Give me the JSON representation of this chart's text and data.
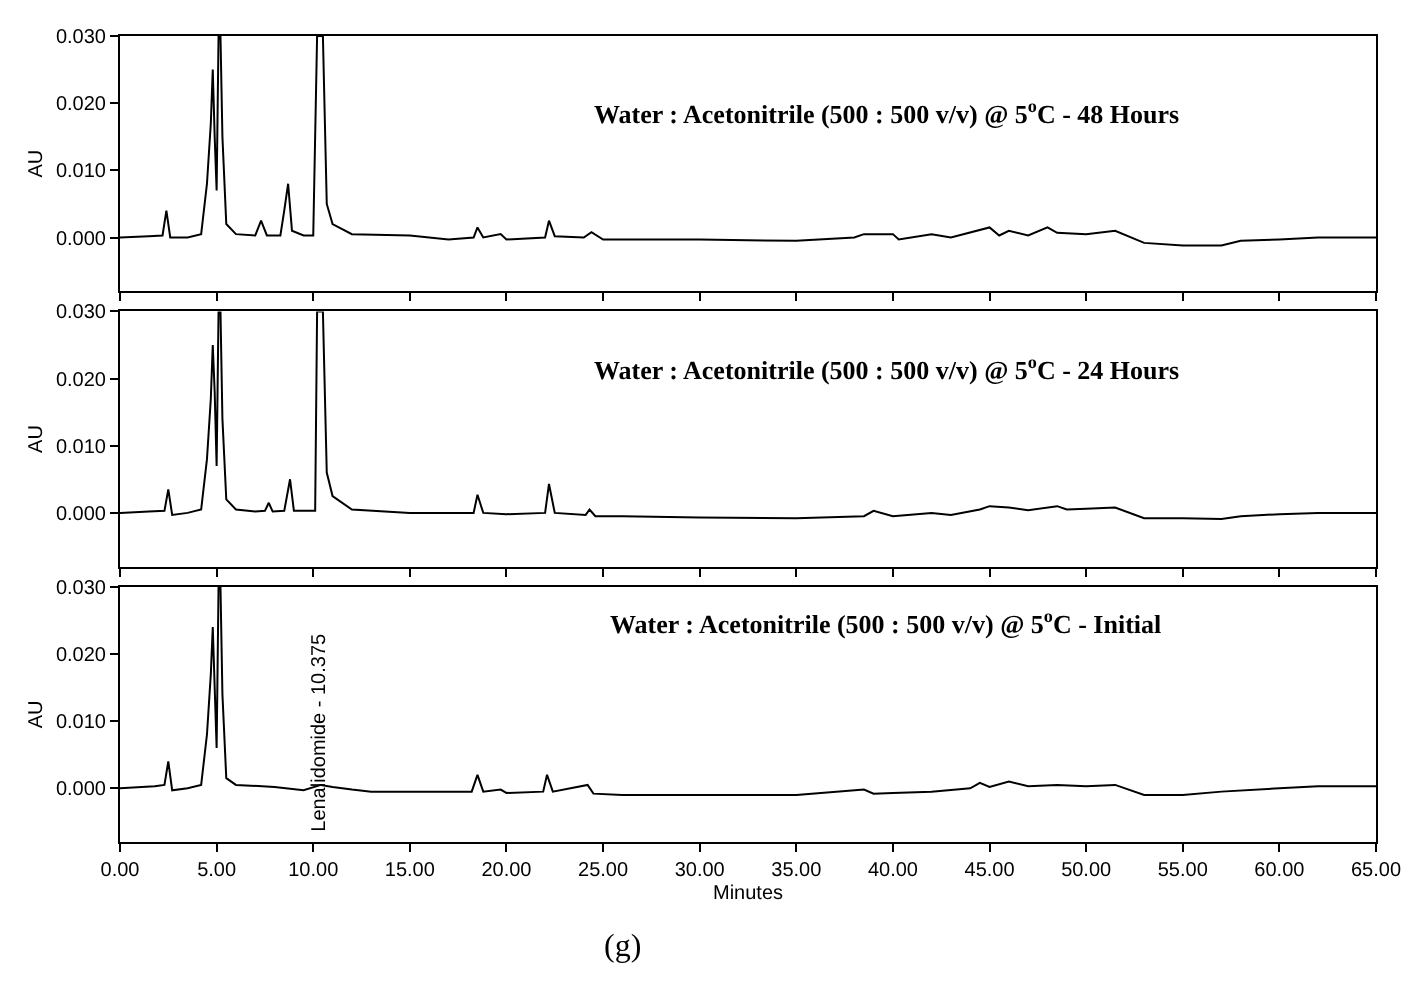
{
  "chart_data": [
    {
      "type": "line",
      "ylabel": "AU",
      "annotations": [
        "Water : Acetonitrile (500 : 500 v/v) @ 5$^{o}$C - 48 Hours"
      ],
      "series": [
        {
          "color": "#000000",
          "x": [
            0,
            1.5,
            2.2,
            2.4,
            2.6,
            3.5,
            4.2,
            4.5,
            4.7,
            4.8,
            4.9,
            5.0,
            5.1,
            5.2,
            5.3,
            5.5,
            6,
            7,
            7.3,
            7.6,
            8.3,
            8.5,
            8.7,
            8.9,
            9.5,
            10,
            10.2,
            10.5,
            10.7,
            11,
            12,
            15,
            17,
            18.3,
            18.5,
            18.8,
            19.7,
            20,
            22,
            22.2,
            22.5,
            24,
            24.4,
            25,
            30,
            35,
            38,
            38.5,
            40,
            40.3,
            42,
            43,
            45,
            45.5,
            46,
            47,
            48,
            48.5,
            50,
            51.5,
            53,
            55,
            57,
            58,
            60,
            62,
            65
          ],
          "values": [
            0,
            0.0002,
            0.0003,
            0.004,
            0,
            0,
            0.0005,
            0.008,
            0.017,
            0.025,
            0.015,
            0.007,
            0.03,
            0.03,
            0.015,
            0.002,
            0.0005,
            0.0003,
            0.0025,
            0.0003,
            0.0003,
            0.004,
            0.008,
            0.001,
            0.0003,
            0.0003,
            0.03,
            0.03,
            0.005,
            0.002,
            0.0005,
            0.0003,
            -0.0003,
            0,
            0.0015,
            0,
            0.0005,
            -0.0003,
            0,
            0.0025,
            0.0002,
            0,
            0.0008,
            -0.0003,
            -0.0003,
            -0.0005,
            0,
            0.0005,
            0.0005,
            -0.0003,
            0.0005,
            0,
            0.0015,
            0.0003,
            0.001,
            0.0003,
            0.0015,
            0.0007,
            0.0005,
            0.001,
            -0.0008,
            -0.0012,
            -0.0012,
            -0.0005,
            -0.0003,
            0,
            0
          ]
        }
      ],
      "xlim": [
        0,
        65
      ],
      "ylim": [
        -0.008,
        0.03
      ],
      "xticks": [
        {
          "value": 0,
          "label": null
        },
        {
          "value": 5,
          "label": null
        },
        {
          "value": 10,
          "label": null
        },
        {
          "value": 15,
          "label": null
        },
        {
          "value": 20,
          "label": null
        },
        {
          "value": 25,
          "label": null
        },
        {
          "value": 30,
          "label": null
        },
        {
          "value": 35,
          "label": null
        },
        {
          "value": 40,
          "label": null
        },
        {
          "value": 45,
          "label": null
        },
        {
          "value": 50,
          "label": null
        },
        {
          "value": 55,
          "label": null
        },
        {
          "value": 60,
          "label": null
        },
        {
          "value": 65,
          "label": null
        }
      ],
      "yticks": [
        {
          "value": 0,
          "label": "0.000"
        },
        {
          "value": 0.01,
          "label": "0.010"
        },
        {
          "value": 0.02,
          "label": "0.020"
        },
        {
          "value": 0.03,
          "label": "0.030"
        }
      ],
      "tick_labels": "y"
    },
    {
      "type": "line",
      "ylabel": "AU",
      "annotations": [
        "Water : Acetonitrile (500 : 500 v/v) @ 5$^{o}$C - 24 Hours"
      ],
      "series": [
        {
          "color": "#000000",
          "x": [
            0,
            1.5,
            2.3,
            2.5,
            2.7,
            3.5,
            4.2,
            4.5,
            4.7,
            4.8,
            4.9,
            5.0,
            5.1,
            5.2,
            5.3,
            5.5,
            6,
            7,
            7.5,
            7.7,
            7.9,
            8.5,
            8.8,
            9.0,
            9.8,
            10.1,
            10.2,
            10.5,
            10.7,
            11,
            12,
            15,
            17,
            18.3,
            18.5,
            18.8,
            20,
            22,
            22.2,
            22.5,
            24.1,
            24.3,
            24.6,
            26,
            30,
            35,
            38.5,
            39,
            40,
            42,
            43,
            44.5,
            45,
            46,
            47,
            48.5,
            49,
            50,
            51.5,
            53,
            55,
            57,
            58,
            60,
            62,
            65
          ],
          "values": [
            0,
            0.0002,
            0.0003,
            0.0035,
            -0.0003,
            0,
            0.0005,
            0.008,
            0.017,
            0.025,
            0.018,
            0.007,
            0.03,
            0.03,
            0.014,
            0.002,
            0.0005,
            0.0002,
            0.0003,
            0.0015,
            0.0002,
            0.0003,
            0.005,
            0.0003,
            0.0003,
            0.0003,
            0.03,
            0.03,
            0.006,
            0.0025,
            0.0005,
            0,
            0,
            0,
            0.0027,
            0,
            -0.0002,
            0,
            0.0043,
            0,
            -0.0003,
            0.0005,
            -0.0005,
            -0.0005,
            -0.0007,
            -0.0008,
            -0.0005,
            0.0003,
            -0.0005,
            0,
            -0.0003,
            0.0005,
            0.001,
            0.0008,
            0.0004,
            0.001,
            0.0005,
            0.0006,
            0.0008,
            -0.0008,
            -0.0008,
            -0.0009,
            -0.0005,
            -0.0002,
            0,
            0
          ]
        }
      ],
      "xlim": [
        0,
        65
      ],
      "ylim": [
        -0.008,
        0.03
      ],
      "xticks": [
        {
          "value": 0,
          "label": null
        },
        {
          "value": 5,
          "label": null
        },
        {
          "value": 10,
          "label": null
        },
        {
          "value": 15,
          "label": null
        },
        {
          "value": 20,
          "label": null
        },
        {
          "value": 25,
          "label": null
        },
        {
          "value": 30,
          "label": null
        },
        {
          "value": 35,
          "label": null
        },
        {
          "value": 40,
          "label": null
        },
        {
          "value": 45,
          "label": null
        },
        {
          "value": 50,
          "label": null
        },
        {
          "value": 55,
          "label": null
        },
        {
          "value": 60,
          "label": null
        },
        {
          "value": 65,
          "label": null
        }
      ],
      "yticks": [
        {
          "value": 0,
          "label": "0.000"
        },
        {
          "value": 0.01,
          "label": "0.010"
        },
        {
          "value": 0.02,
          "label": "0.020"
        },
        {
          "value": 0.03,
          "label": "0.030"
        }
      ],
      "tick_labels": "y"
    },
    {
      "type": "line",
      "xlabel": "Minutes",
      "ylabel": "AU",
      "annotations": [
        "Water : Acetonitrile (500 : 500 v/v) @ 5$^{o}$C - Initial",
        {
          "text": "Lenalidomide - 10.375",
          "x": 10.375,
          "y": 0
        },
        "(g)"
      ],
      "series": [
        {
          "color": "#000000",
          "x": [
            0,
            1.8,
            2.3,
            2.5,
            2.7,
            3.5,
            4.2,
            4.5,
            4.7,
            4.8,
            4.9,
            5.0,
            5.1,
            5.2,
            5.3,
            5.5,
            6,
            8,
            9.5,
            10.4,
            11,
            12,
            13,
            15,
            18.2,
            18.5,
            18.8,
            19.7,
            20,
            21.9,
            22.1,
            22.4,
            24.2,
            24.5,
            26,
            30,
            35,
            38.5,
            39,
            40,
            42,
            44,
            44.5,
            45,
            46,
            47,
            48.5,
            50,
            51.5,
            53,
            55,
            57,
            60,
            62,
            65
          ],
          "values": [
            0,
            0.0003,
            0.0005,
            0.004,
            -0.0003,
            0,
            0.0005,
            0.008,
            0.017,
            0.024,
            0.015,
            0.006,
            0.03,
            0.03,
            0.014,
            0.0015,
            0.0005,
            0.0002,
            -0.0003,
            0.0005,
            0.0002,
            -0.0002,
            -0.0005,
            -0.0005,
            -0.0005,
            0.002,
            -0.0005,
            -0.0002,
            -0.0007,
            -0.0005,
            0.002,
            -0.0005,
            0.0005,
            -0.0008,
            -0.001,
            -0.001,
            -0.001,
            -0.0002,
            -0.0008,
            -0.0007,
            -0.0005,
            0,
            0.0008,
            0.0002,
            0.001,
            0.0003,
            0.0005,
            0.0003,
            0.0005,
            -0.001,
            -0.001,
            -0.0005,
            0,
            0.0003,
            0.0003
          ]
        }
      ],
      "xlim": [
        0,
        65
      ],
      "ylim": [
        -0.008,
        0.03
      ],
      "xticks": [
        {
          "value": 0,
          "label": "0.00"
        },
        {
          "value": 5,
          "label": "5.00"
        },
        {
          "value": 10,
          "label": "10.00"
        },
        {
          "value": 15,
          "label": "15.00"
        },
        {
          "value": 20,
          "label": "20.00"
        },
        {
          "value": 25,
          "label": "25.00"
        },
        {
          "value": 30,
          "label": "30.00"
        },
        {
          "value": 35,
          "label": "35.00"
        },
        {
          "value": 40,
          "label": "40.00"
        },
        {
          "value": 45,
          "label": "45.00"
        },
        {
          "value": 50,
          "label": "50.00"
        },
        {
          "value": 55,
          "label": "55.00"
        },
        {
          "value": 60,
          "label": "60.00"
        },
        {
          "value": 65,
          "label": "65.00"
        }
      ],
      "yticks": [
        {
          "value": 0,
          "label": "0.000"
        },
        {
          "value": 0.01,
          "label": "0.010"
        },
        {
          "value": 0.02,
          "label": "0.020"
        },
        {
          "value": 0.03,
          "label": "0.030"
        }
      ],
      "tick_labels": true
    }
  ]
}
